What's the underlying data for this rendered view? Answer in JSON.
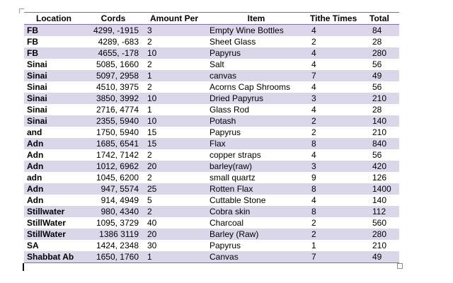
{
  "table": {
    "headers": {
      "location": "Location",
      "cords": "Cords",
      "amount": "Amount Per",
      "item": "Item",
      "tithe": "Tithe Times",
      "total": "Total"
    },
    "rows": [
      {
        "location": "FB",
        "cords": "4299, -1915",
        "amount": "3",
        "item": "Empty Wine Bottles",
        "tithe": "4",
        "total": "84"
      },
      {
        "location": "FB",
        "cords": "4289, -683",
        "amount": "2",
        "item": "Sheet Glass",
        "tithe": "2",
        "total": "28"
      },
      {
        "location": "FB",
        "cords": "4655, -178",
        "amount": "10",
        "item": "Papyrus",
        "tithe": "4",
        "total": "280"
      },
      {
        "location": "Sinai",
        "cords": "5085, 1660",
        "amount": "2",
        "item": "Salt",
        "tithe": "4",
        "total": "56"
      },
      {
        "location": "Sinai",
        "cords": "5097, 2958",
        "amount": "1",
        "item": "canvas",
        "tithe": "7",
        "total": "49"
      },
      {
        "location": "Sinai",
        "cords": "4510, 3975",
        "amount": "2",
        "item": "Acorns Cap Shrooms",
        "tithe": "4",
        "total": "56"
      },
      {
        "location": "Sinai",
        "cords": "3850, 3992",
        "amount": "10",
        "item": "Dried Papyrus",
        "tithe": "3",
        "total": "210"
      },
      {
        "location": "Sinai",
        "cords": "2716, 4774",
        "amount": "1",
        "item": "Glass Rod",
        "tithe": "4",
        "total": "28"
      },
      {
        "location": "Sinai",
        "cords": "2355, 5940",
        "amount": "10",
        "item": "Potash",
        "tithe": "2",
        "total": "140"
      },
      {
        "location": "and",
        "cords": "1750, 5940",
        "amount": "15",
        "item": "Papyrus",
        "tithe": "2",
        "total": "210"
      },
      {
        "location": "Adn",
        "cords": "1685, 6541",
        "amount": "15",
        "item": "Flax",
        "tithe": "8",
        "total": "840"
      },
      {
        "location": "Adn",
        "cords": "1742, 7142",
        "amount": "2",
        "item": "copper straps",
        "tithe": "4",
        "total": "56"
      },
      {
        "location": "Adn",
        "cords": "1012, 6962",
        "amount": "20",
        "item": "barley(raw)",
        "tithe": "3",
        "total": "420"
      },
      {
        "location": "adn",
        "cords": "1045, 6200",
        "amount": "2",
        "item": "small quartz",
        "tithe": "9",
        "total": "126"
      },
      {
        "location": "Adn",
        "cords": "947, 5574",
        "amount": "25",
        "item": "Rotten Flax",
        "tithe": "8",
        "total": "1400"
      },
      {
        "location": "Adn",
        "cords": "914, 4949",
        "amount": "5",
        "item": "Cuttable Stone",
        "tithe": "4",
        "total": "140"
      },
      {
        "location": "Stillwater",
        "cords": "980, 4340",
        "amount": "2",
        "item": "Cobra skin",
        "tithe": "8",
        "total": "112"
      },
      {
        "location": "StillWater",
        "cords": "1095, 3729",
        "amount": "40",
        "item": "Charcoal",
        "tithe": "2",
        "total": "560"
      },
      {
        "location": "StillWater",
        "cords": "1386 3119",
        "amount": "20",
        "item": "Barley (Raw)",
        "tithe": "2",
        "total": "280"
      },
      {
        "location": "SA",
        "cords": "1424, 2348",
        "amount": "30",
        "item": "Papyrus",
        "tithe": "1",
        "total": "210"
      },
      {
        "location": "Shabbat Ab",
        "cords": "1650, 1760",
        "amount": "1",
        "item": "Canvas",
        "tithe": "7",
        "total": "49"
      }
    ]
  },
  "colors": {
    "band": "#dcd6ea",
    "rule": "#7b6ea6"
  }
}
